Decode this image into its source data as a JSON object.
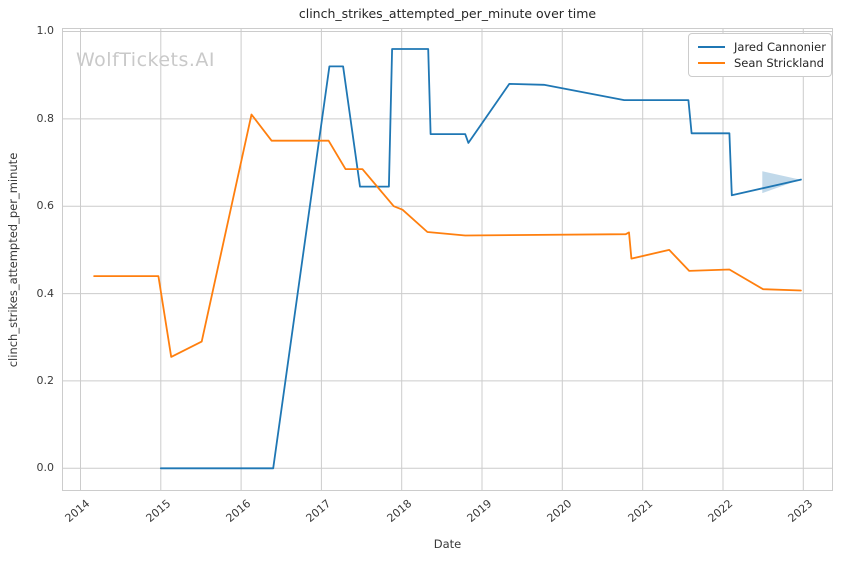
{
  "header": {
    "title": "clinch_strikes_attempted_per_minute over time",
    "watermark": "WolfTickets.AI"
  },
  "chart_data": {
    "type": "line",
    "title": "clinch_strikes_attempted_per_minute over time",
    "xlabel": "Date",
    "ylabel": "clinch_strikes_attempted_per_minute",
    "xlim": [
      2013.77,
      2023.37
    ],
    "ylim": [
      -0.052,
      1.008
    ],
    "x_ticks": [
      2014,
      2015,
      2016,
      2017,
      2018,
      2019,
      2020,
      2021,
      2022,
      2023
    ],
    "y_ticks": [
      0.0,
      0.2,
      0.4,
      0.6,
      0.8,
      1.0
    ],
    "y_tick_labels": [
      "0.0",
      "0.2",
      "0.4",
      "0.6",
      "0.8",
      "1.0"
    ],
    "grid": true,
    "legend_position": "upper right",
    "line_width": 1.8,
    "series": [
      {
        "name": "Jared Cannonier",
        "color": "#1f77b4",
        "points": [
          [
            2015.0,
            0.0
          ],
          [
            2016.4,
            0.0
          ],
          [
            2017.1,
            0.92
          ],
          [
            2017.27,
            0.92
          ],
          [
            2017.48,
            0.645
          ],
          [
            2017.84,
            0.645
          ],
          [
            2017.88,
            0.96
          ],
          [
            2018.33,
            0.96
          ],
          [
            2018.36,
            0.765
          ],
          [
            2018.79,
            0.765
          ],
          [
            2018.83,
            0.745
          ],
          [
            2019.34,
            0.88
          ],
          [
            2019.77,
            0.878
          ],
          [
            2020.77,
            0.843
          ],
          [
            2021.57,
            0.843
          ],
          [
            2021.61,
            0.767
          ],
          [
            2022.08,
            0.767
          ],
          [
            2022.11,
            0.625
          ],
          [
            2022.97,
            0.661
          ]
        ]
      },
      {
        "name": "Sean Strickland",
        "color": "#ff7f0e",
        "points": [
          [
            2014.17,
            0.44
          ],
          [
            2014.97,
            0.44
          ],
          [
            2015.13,
            0.255
          ],
          [
            2015.51,
            0.29
          ],
          [
            2016.13,
            0.81
          ],
          [
            2016.38,
            0.75
          ],
          [
            2017.09,
            0.75
          ],
          [
            2017.3,
            0.685
          ],
          [
            2017.51,
            0.685
          ],
          [
            2017.9,
            0.6
          ],
          [
            2018.01,
            0.592
          ],
          [
            2018.32,
            0.541
          ],
          [
            2018.79,
            0.533
          ],
          [
            2020.79,
            0.536
          ],
          [
            2020.83,
            0.54
          ],
          [
            2020.86,
            0.48
          ],
          [
            2021.33,
            0.5
          ],
          [
            2021.58,
            0.452
          ],
          [
            2022.08,
            0.455
          ],
          [
            2022.5,
            0.41
          ],
          [
            2022.97,
            0.407
          ]
        ]
      }
    ],
    "annotation": {
      "type": "arrow",
      "color": "#1f77b4",
      "opacity": 0.28,
      "points": [
        [
          2022.49,
          0.68
        ],
        [
          2022.49,
          0.63
        ],
        [
          2022.96,
          0.661
        ]
      ]
    }
  }
}
